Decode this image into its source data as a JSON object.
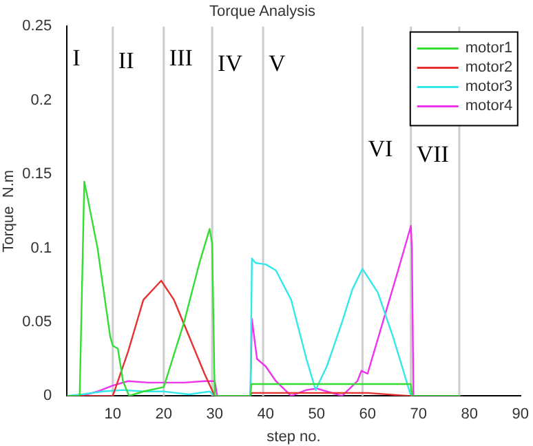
{
  "chart_data": {
    "type": "line",
    "title": "Torque Analysis",
    "xlabel": "step no.",
    "ylabel": "Torque  N.m",
    "xlim": [
      1,
      90
    ],
    "xticks": [
      10,
      20,
      30,
      40,
      50,
      60,
      70,
      80,
      90
    ],
    "ylim": [
      0,
      0.25
    ],
    "yticks": [
      0,
      0.05,
      0.1,
      0.15,
      0.2,
      0.25
    ],
    "grid": false,
    "legend": "top right",
    "marker": "none",
    "line_style": "solid",
    "series": [
      {
        "name": "motor1",
        "color": "#33dd33",
        "x": [
          1,
          3.5,
          4.4,
          5,
          7,
          9.5,
          10,
          11,
          12,
          13.2,
          16,
          20,
          24,
          27,
          29,
          29.5,
          30,
          37,
          37.2,
          68.5,
          68.7,
          78
        ],
        "values": [
          0,
          0,
          0.145,
          0.135,
          0.1,
          0.04,
          0.034,
          0.032,
          0.01,
          0,
          0.003,
          0.006,
          0.05,
          0.09,
          0.113,
          0.103,
          0,
          0,
          0.008,
          0.008,
          0,
          0
        ]
      },
      {
        "name": "motor2",
        "color": "#e83030",
        "x": [
          1,
          10,
          13,
          16,
          19.5,
          22,
          25,
          28,
          30,
          37,
          37.2,
          60,
          68,
          69
        ],
        "values": [
          0,
          0,
          0.03,
          0.065,
          0.078,
          0.065,
          0.04,
          0.015,
          0,
          0,
          0.002,
          0.002,
          0,
          0
        ]
      },
      {
        "name": "motor3",
        "color": "#33e8e8",
        "x": [
          1,
          4,
          8,
          12,
          16,
          20,
          25,
          29,
          30,
          37,
          37.3,
          38,
          40,
          42,
          45,
          48,
          49.8,
          52,
          55,
          57,
          59,
          62,
          65,
          68.5,
          69
        ],
        "values": [
          0,
          0.001,
          0.003,
          0.004,
          0.003,
          0.003,
          0.001,
          0.003,
          0,
          0,
          0.093,
          0.09,
          0.089,
          0.085,
          0.065,
          0.025,
          0.004,
          0.02,
          0.05,
          0.072,
          0.086,
          0.07,
          0.04,
          0,
          0
        ]
      },
      {
        "name": "motor4",
        "color": "#ee33ee",
        "x": [
          1,
          4,
          7,
          10,
          13,
          17,
          20,
          24,
          28,
          30,
          30.5,
          37,
          37.3,
          38.3,
          40,
          42,
          45,
          48,
          50,
          52,
          55,
          58,
          58.8,
          60,
          63,
          66,
          68.5,
          68.7,
          69,
          78
        ],
        "values": [
          0,
          0,
          0.003,
          0.007,
          0.01,
          0.009,
          0.009,
          0.009,
          0.01,
          0.01,
          0,
          0,
          0.052,
          0.025,
          0.02,
          0.01,
          0,
          0.004,
          0.005,
          0.003,
          0,
          0.01,
          0.017,
          0.015,
          0.05,
          0.085,
          0.115,
          0.1,
          0,
          0
        ]
      }
    ],
    "ref_lines": [
      {
        "axis": "x",
        "value": 10,
        "color": "#cccccc"
      },
      {
        "axis": "x",
        "value": 20,
        "color": "#cccccc"
      },
      {
        "axis": "x",
        "value": 29.5,
        "color": "#cccccc"
      },
      {
        "axis": "x",
        "value": 39.5,
        "color": "#cccccc"
      },
      {
        "axis": "x",
        "value": 59,
        "color": "#cccccc"
      },
      {
        "axis": "x",
        "value": 68.5,
        "color": "#cccccc"
      },
      {
        "axis": "x",
        "value": 78,
        "color": "#cccccc"
      }
    ],
    "annotations": [
      "I",
      "II",
      "III",
      "IV",
      "V",
      "VI",
      "VII"
    ]
  }
}
